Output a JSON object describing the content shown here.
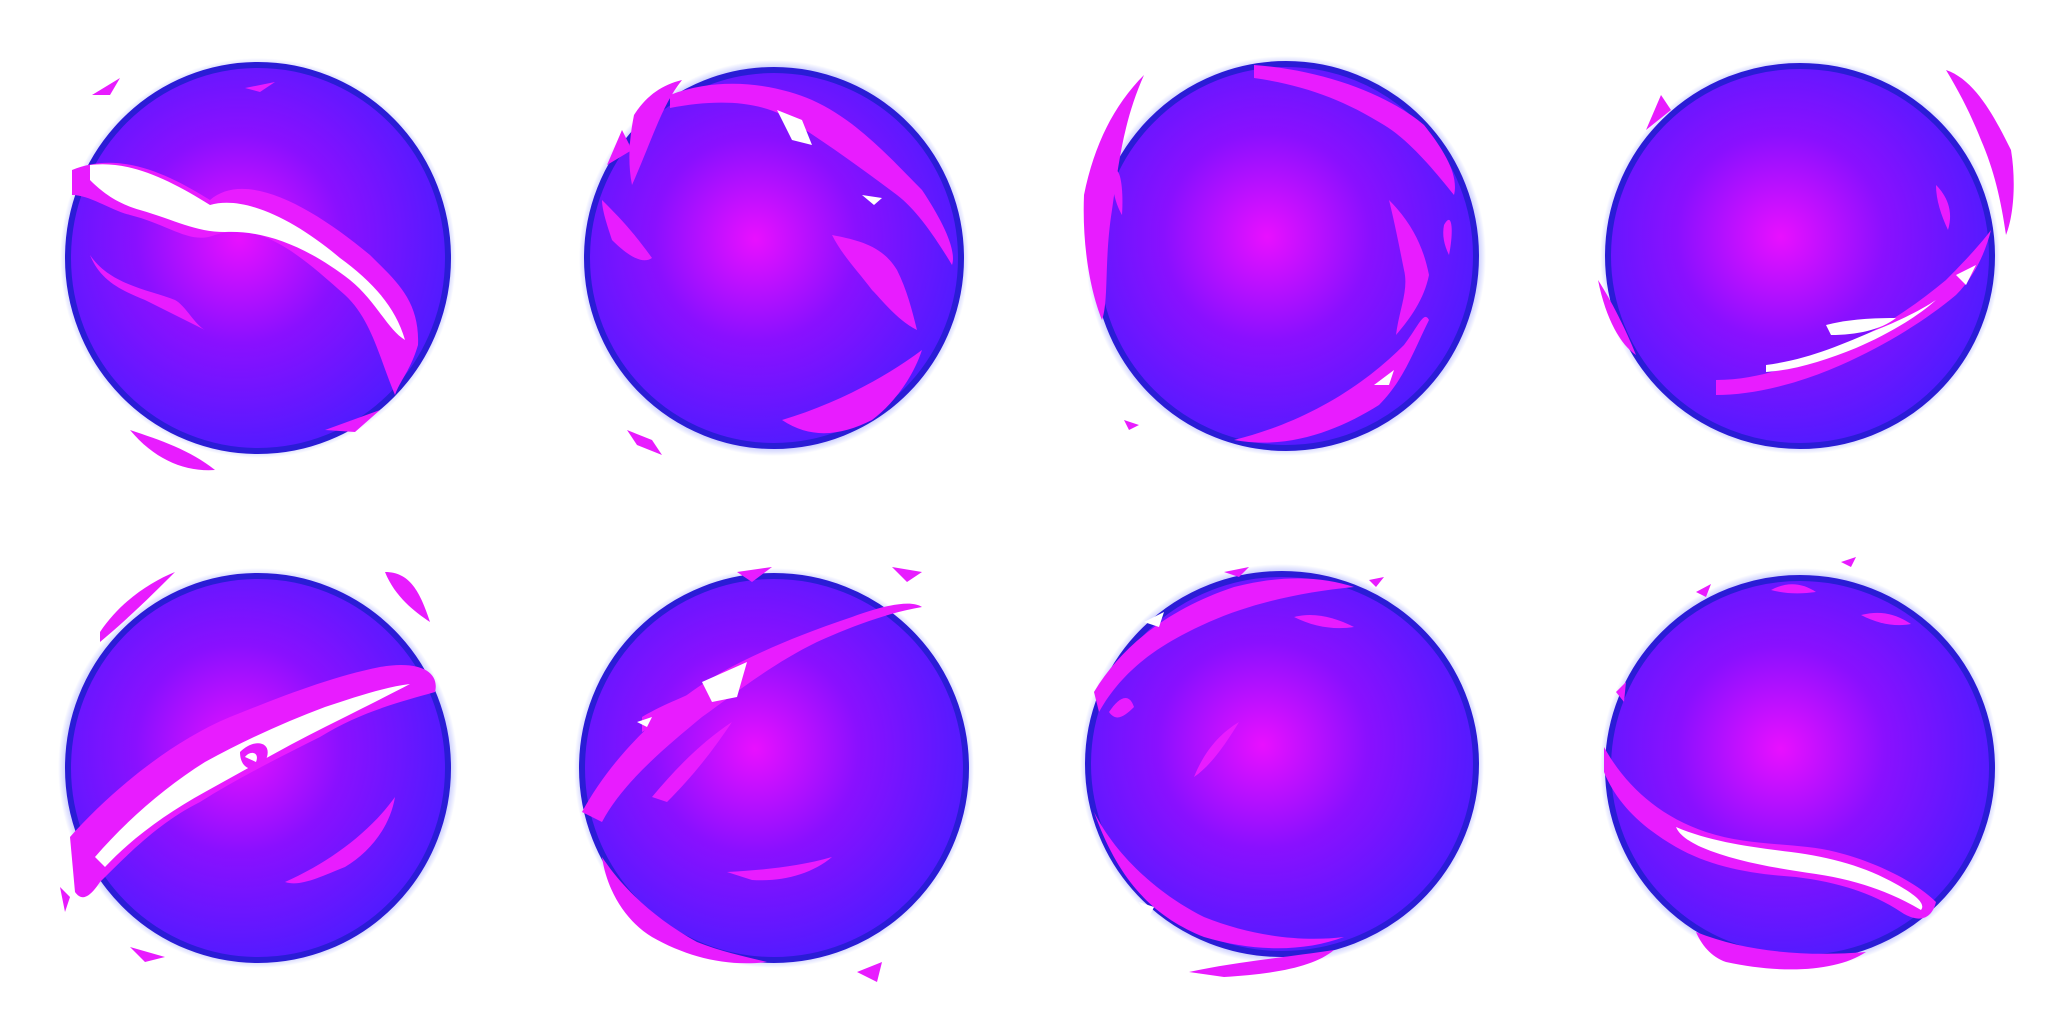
{
  "sprite_sheet": {
    "columns": 4,
    "rows": 2,
    "frame_count": 8,
    "colors": {
      "background": "#ffffff",
      "glow": "#1d2bff",
      "rim": "#2a1cd6",
      "core": "#e810ff",
      "mid": "#8a10ff",
      "outer": "#4a1cff",
      "crackle": "#e81cff",
      "highlight": "#ffffff"
    },
    "frames": [
      {
        "index": 1,
        "icon": "energy-orb-frame-1"
      },
      {
        "index": 2,
        "icon": "energy-orb-frame-2"
      },
      {
        "index": 3,
        "icon": "energy-orb-frame-3"
      },
      {
        "index": 4,
        "icon": "energy-orb-frame-4"
      },
      {
        "index": 5,
        "icon": "energy-orb-frame-5"
      },
      {
        "index": 6,
        "icon": "energy-orb-frame-6"
      },
      {
        "index": 7,
        "icon": "energy-orb-frame-7"
      },
      {
        "index": 8,
        "icon": "energy-orb-frame-8"
      }
    ]
  }
}
